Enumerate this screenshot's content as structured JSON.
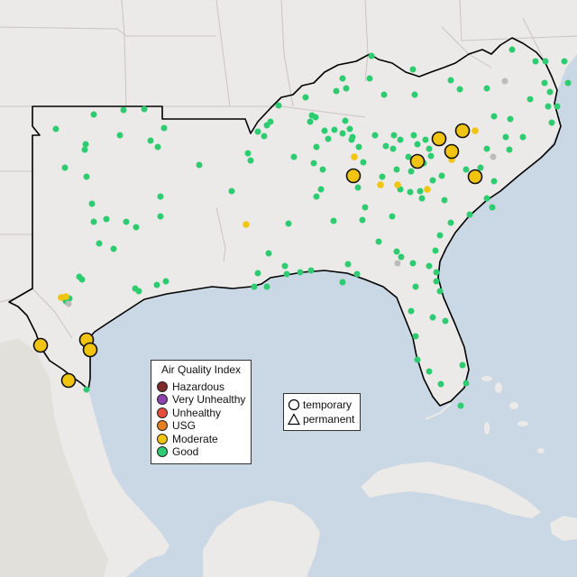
{
  "map": {
    "colors": {
      "ocean": "#c9d8e4",
      "land": "#eceae8",
      "border": "#c8c4c0",
      "region_outline": "#000000",
      "ground_dark": "#dcd8d2"
    }
  },
  "legend_aqi": {
    "title": "Air Quality Index",
    "items": [
      {
        "label": "Hazardous",
        "color": "#7e2a2a"
      },
      {
        "label": "Very Unhealthy",
        "color": "#8e44ad"
      },
      {
        "label": "Unhealthy",
        "color": "#e74c3c"
      },
      {
        "label": "USG",
        "color": "#e67e22"
      },
      {
        "label": "Moderate",
        "color": "#f1c40f"
      },
      {
        "label": "Good",
        "color": "#2ecc71"
      }
    ]
  },
  "legend_type": {
    "items": [
      {
        "label": "temporary",
        "shape": "circle"
      },
      {
        "label": "permanent",
        "shape": "triangle"
      }
    ]
  }
}
